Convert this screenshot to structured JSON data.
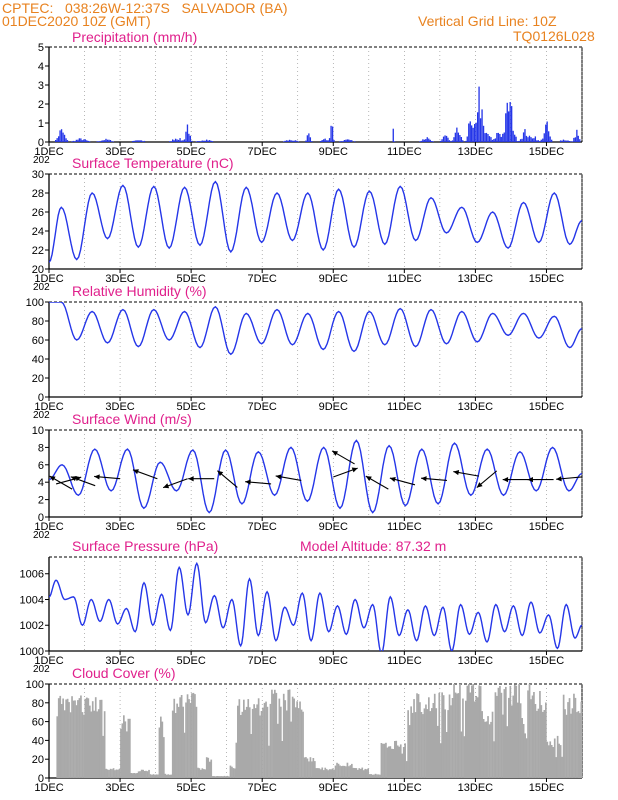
{
  "header": {
    "line1": "CPTEC:   038:26W-12:37S   SALVADOR (BA)",
    "line2": "01DEC2020 10Z (GMT)",
    "right1": "Vertical Grid Line: 10Z",
    "right2": "TQ0126L028"
  },
  "colors": {
    "header_text": "#e8821f",
    "panel_title": "#e0208c",
    "series": "#2536e8",
    "cloud": "#a9a9a9",
    "wind_arrow": "#000000"
  },
  "chart_data": [
    {
      "type": "bar",
      "title": "Precipitation (mm/h)",
      "ylim": [
        0,
        5
      ],
      "yticks": [
        0,
        1,
        2,
        3,
        4,
        5
      ],
      "x_tick_labels": [
        "1DEC",
        "3DEC",
        "5DEC",
        "7DEC",
        "9DEC",
        "11DEC",
        "13DEC",
        "15DEC"
      ],
      "x_tick_days": [
        0,
        2,
        4,
        6,
        8,
        10,
        12,
        14
      ],
      "xlim_days": [
        0,
        15
      ],
      "partial_label": "202",
      "events": [
        {
          "day": 0.35,
          "amp": 0.55,
          "width": 0.12
        },
        {
          "day": 0.9,
          "amp": 0.15,
          "width": 0.2
        },
        {
          "day": 1.6,
          "amp": 0.12,
          "width": 0.2
        },
        {
          "day": 2.5,
          "amp": 0.1,
          "width": 0.2
        },
        {
          "day": 3.6,
          "amp": 0.2,
          "width": 0.15
        },
        {
          "day": 3.9,
          "amp": 0.85,
          "width": 0.07
        },
        {
          "day": 4.4,
          "amp": 0.12,
          "width": 0.2
        },
        {
          "day": 6.8,
          "amp": 0.1,
          "width": 0.2
        },
        {
          "day": 7.3,
          "amp": 0.45,
          "width": 0.06
        },
        {
          "day": 7.75,
          "amp": 0.15,
          "width": 0.1
        },
        {
          "day": 7.95,
          "amp": 1.1,
          "width": 0.05
        },
        {
          "day": 8.4,
          "amp": 0.1,
          "width": 0.2
        },
        {
          "day": 9.7,
          "amp": 1.1,
          "width": 0.015
        },
        {
          "day": 10.6,
          "amp": 0.2,
          "width": 0.15
        },
        {
          "day": 11.15,
          "amp": 0.35,
          "width": 0.1
        },
        {
          "day": 11.5,
          "amp": 0.55,
          "width": 0.1
        },
        {
          "day": 11.85,
          "amp": 0.9,
          "width": 0.08
        },
        {
          "day": 12.1,
          "amp": 2.3,
          "width": 0.11
        },
        {
          "day": 12.35,
          "amp": 0.4,
          "width": 0.1
        },
        {
          "day": 12.65,
          "amp": 0.5,
          "width": 0.1
        },
        {
          "day": 12.95,
          "amp": 1.9,
          "width": 0.13
        },
        {
          "day": 13.4,
          "amp": 0.5,
          "width": 0.12
        },
        {
          "day": 13.65,
          "amp": 0.3,
          "width": 0.1
        },
        {
          "day": 14.0,
          "amp": 0.8,
          "width": 0.1
        },
        {
          "day": 14.5,
          "amp": 0.12,
          "width": 0.15
        },
        {
          "day": 14.85,
          "amp": 0.55,
          "width": 0.07
        }
      ]
    },
    {
      "type": "line",
      "title": "Surface Temperature (nC)",
      "ylim": [
        20,
        30
      ],
      "yticks": [
        20,
        22,
        24,
        26,
        28,
        30
      ],
      "x_tick_labels": [
        "1DEC",
        "3DEC",
        "5DEC",
        "7DEC",
        "9DEC",
        "11DEC",
        "13DEC",
        "15DEC"
      ],
      "x_tick_days": [
        0,
        2,
        4,
        6,
        8,
        10,
        12,
        14
      ],
      "xlim_days": [
        0,
        15
      ],
      "partial_label": "202",
      "start_value": 20.7,
      "start_day": 0.0,
      "maxima": [
        26.5,
        28.0,
        28.8,
        28.7,
        28.6,
        29.2,
        28.6,
        28.0,
        28.0,
        28.4,
        28.2,
        28.7,
        27.5,
        26.5,
        26.0,
        27.0,
        28.0
      ],
      "minima": [
        21.0,
        23.2,
        22.3,
        22.2,
        22.5,
        21.8,
        22.8,
        23.0,
        22.0,
        22.3,
        22.6,
        23.0,
        23.8,
        22.8,
        22.2,
        22.8,
        22.6
      ],
      "end_value": 25.1
    },
    {
      "type": "line",
      "title": "Relative Humidity (%)",
      "ylim": [
        0,
        100
      ],
      "yticks": [
        0,
        20,
        40,
        60,
        80,
        100
      ],
      "x_tick_labels": [
        "1DEC",
        "3DEC",
        "5DEC",
        "7DEC",
        "9DEC",
        "11DEC",
        "13DEC",
        "15DEC"
      ],
      "x_tick_days": [
        0,
        2,
        4,
        6,
        8,
        10,
        12,
        14
      ],
      "xlim_days": [
        0,
        15
      ],
      "partial_label": "202",
      "start_value": 100,
      "start_day": 0.0,
      "maxima": [
        100,
        90,
        92,
        92,
        90,
        95,
        88,
        92,
        88,
        90,
        90,
        93,
        92,
        90,
        88,
        88,
        85
      ],
      "minima": [
        60,
        57,
        53,
        60,
        52,
        45,
        56,
        55,
        50,
        48,
        55,
        53,
        56,
        58,
        65,
        62,
        52
      ],
      "end_value": 72
    },
    {
      "type": "line",
      "title": "Surface Wind (m/s)",
      "ylim": [
        0,
        10
      ],
      "yticks": [
        0,
        2,
        4,
        6,
        8,
        10
      ],
      "x_tick_labels": [
        "1DEC",
        "3DEC",
        "5DEC",
        "7DEC",
        "9DEC",
        "11DEC",
        "13DEC",
        "15DEC"
      ],
      "x_tick_days": [
        0,
        2,
        4,
        6,
        8,
        10,
        12,
        14
      ],
      "xlim_days": [
        0,
        15
      ],
      "partial_label": "202",
      "start_value": 4.3,
      "start_day": 0.0,
      "maxima": [
        6.0,
        7.8,
        7.8,
        6.3,
        7.7,
        7.7,
        7.5,
        8.0,
        8.0,
        8.8,
        8.2,
        7.8,
        8.5,
        7.8,
        7.5,
        8.0
      ],
      "minima": [
        2.5,
        3.0,
        1.0,
        3.0,
        0.5,
        1.5,
        2.5,
        1.8,
        1.0,
        0.5,
        1.3,
        1.5,
        2.5,
        2.5,
        3.0,
        3.0
      ],
      "end_value": 5.0,
      "wind_arrows": [
        {
          "day": 0.2,
          "speed": 3.8,
          "dir_deg": 15
        },
        {
          "day": 0.65,
          "speed": 3.2,
          "dir_deg": 150
        },
        {
          "day": 1.3,
          "speed": 3.6,
          "dir_deg": 160
        },
        {
          "day": 2.0,
          "speed": 4.4,
          "dir_deg": 175
        },
        {
          "day": 3.05,
          "speed": 4.4,
          "dir_deg": 160
        },
        {
          "day": 3.9,
          "speed": 4.4,
          "dir_deg": 200
        },
        {
          "day": 4.65,
          "speed": 4.4,
          "dir_deg": 180
        },
        {
          "day": 5.3,
          "speed": 3.4,
          "dir_deg": 140
        },
        {
          "day": 6.25,
          "speed": 3.8,
          "dir_deg": 175
        },
        {
          "day": 7.1,
          "speed": 4.2,
          "dir_deg": 170
        },
        {
          "day": 8.0,
          "speed": 4.6,
          "dir_deg": 20
        },
        {
          "day": 8.6,
          "speed": 6.1,
          "dir_deg": 150
        },
        {
          "day": 9.55,
          "speed": 3.2,
          "dir_deg": 150
        },
        {
          "day": 10.3,
          "speed": 3.7,
          "dir_deg": 165
        },
        {
          "day": 11.2,
          "speed": 4.2,
          "dir_deg": 175
        },
        {
          "day": 12.1,
          "speed": 4.7,
          "dir_deg": 170
        },
        {
          "day": 12.6,
          "speed": 5.3,
          "dir_deg": 220
        },
        {
          "day": 13.5,
          "speed": 4.3,
          "dir_deg": 180
        },
        {
          "day": 14.2,
          "speed": 4.3,
          "dir_deg": 180
        },
        {
          "day": 15.0,
          "speed": 4.6,
          "dir_deg": 185
        }
      ]
    },
    {
      "type": "line",
      "title": "Surface Pressure (hPa)",
      "annotation": "Model Altitude: 87.32  m",
      "ylim": [
        1000,
        1007.3
      ],
      "yticks": [
        1000,
        1002,
        1004,
        1006
      ],
      "x_tick_labels": [
        "1DEC",
        "3DEC",
        "5DEC",
        "7DEC",
        "9DEC",
        "11DEC",
        "13DEC",
        "15DEC"
      ],
      "x_tick_days": [
        0,
        2,
        4,
        6,
        8,
        10,
        12,
        14
      ],
      "xlim_days": [
        0,
        15
      ],
      "partial_label": "202",
      "start_value": 1004.2,
      "start_day": 0.0,
      "maxima": [
        1005.5,
        1004.2,
        1004.0,
        1004.0,
        1003.3,
        1005.3,
        1004.4,
        1006.5,
        1006.8,
        1004.3,
        1004.0,
        1005.6,
        1004.6,
        1003.4,
        1004.5,
        1004.5,
        1003.5,
        1004.0,
        1003.6,
        1004.2,
        1003.2,
        1003.5,
        1003.4,
        1003.6,
        1003.0,
        1003.6,
        1003.5,
        1003.8,
        1002.8,
        1003.6
      ],
      "minima": [
        1004.0,
        1002.0,
        1002.3,
        1002.1,
        1001.5,
        1002.0,
        1001.6,
        1002.8,
        1002.2,
        1001.8,
        1000.4,
        1001.2,
        1000.8,
        1002.0,
        1000.8,
        1001.5,
        1001.3,
        1001.8,
        999.8,
        1001.2,
        1000.8,
        1001.2,
        1000.0,
        1001.3,
        1000.7,
        1001.5,
        1001.2,
        1001.4,
        1000.2,
        1001.0
      ],
      "end_value": 1002.0
    },
    {
      "type": "bar",
      "title": "Cloud Cover (%)",
      "ylim": [
        0,
        100
      ],
      "yticks": [
        0,
        20,
        40,
        60,
        80,
        100
      ],
      "x_tick_labels": [
        "1DEC",
        "3DEC",
        "5DEC",
        "7DEC",
        "9DEC",
        "11DEC",
        "13DEC",
        "15DEC"
      ],
      "x_tick_days": [
        0,
        2,
        4,
        6,
        8,
        10,
        12,
        14
      ],
      "xlim_days": [
        0,
        15
      ],
      "blocks": [
        {
          "from": 0.2,
          "to": 1.6,
          "level": 80
        },
        {
          "from": 1.6,
          "to": 2.0,
          "level": 10
        },
        {
          "from": 2.0,
          "to": 2.3,
          "level": 60
        },
        {
          "from": 2.3,
          "to": 2.5,
          "level": 5
        },
        {
          "from": 2.5,
          "to": 2.85,
          "level": 8
        },
        {
          "from": 2.85,
          "to": 3.1,
          "level": 4
        },
        {
          "from": 3.1,
          "to": 3.25,
          "level": 65
        },
        {
          "from": 3.25,
          "to": 3.45,
          "level": 4
        },
        {
          "from": 3.45,
          "to": 4.15,
          "level": 82
        },
        {
          "from": 4.15,
          "to": 4.4,
          "level": 10
        },
        {
          "from": 4.4,
          "to": 4.6,
          "level": 20
        },
        {
          "from": 4.6,
          "to": 5.1,
          "level": 2
        },
        {
          "from": 5.1,
          "to": 5.25,
          "level": 12
        },
        {
          "from": 5.25,
          "to": 6.25,
          "level": 76
        },
        {
          "from": 6.25,
          "to": 7.15,
          "level": 86
        },
        {
          "from": 7.15,
          "to": 7.5,
          "level": 20
        },
        {
          "from": 7.5,
          "to": 8.05,
          "level": 10
        },
        {
          "from": 8.05,
          "to": 8.55,
          "level": 15
        },
        {
          "from": 8.55,
          "to": 9.0,
          "level": 10
        },
        {
          "from": 9.0,
          "to": 9.35,
          "level": 4
        },
        {
          "from": 9.35,
          "to": 10.1,
          "level": 36
        },
        {
          "from": 10.1,
          "to": 11.3,
          "level": 82
        },
        {
          "from": 11.3,
          "to": 12.15,
          "level": 92
        },
        {
          "from": 12.15,
          "to": 12.55,
          "level": 68
        },
        {
          "from": 12.55,
          "to": 13.6,
          "level": 92
        },
        {
          "from": 13.6,
          "to": 14.0,
          "level": 85
        },
        {
          "from": 14.0,
          "to": 14.45,
          "level": 40
        },
        {
          "from": 14.45,
          "to": 15.0,
          "level": 82
        }
      ]
    }
  ]
}
